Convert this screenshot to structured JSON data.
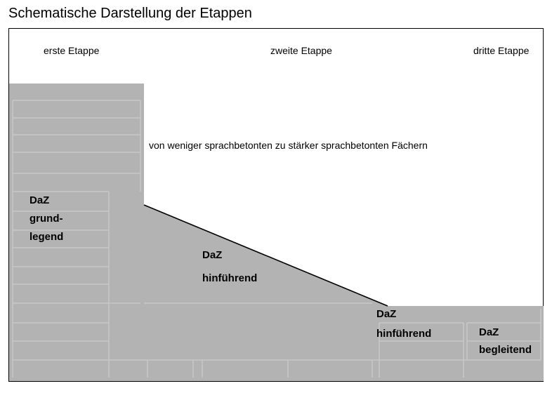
{
  "title": "Schematische Darstellung der Etappen",
  "stages": {
    "first": "erste Etappe",
    "second": "zweite Etappe",
    "third": "dritte Etappe"
  },
  "caption": "von weniger sprachbetonten zu stärker sprachbetonten Fächern",
  "blocks": {
    "grundlegend": {
      "line1": "DaZ",
      "line2": "grund-",
      "line3": "legend"
    },
    "hinfuehrend_1": {
      "line1": "DaZ",
      "line2": "hinführend"
    },
    "hinfuehrend_2": {
      "line1": "DaZ",
      "line2": "hinführend"
    },
    "begleitend": {
      "line1": "DaZ",
      "line2": "begleitend"
    }
  },
  "colors": {
    "fill": "#b3b3b3",
    "stripe": "#c4c4c4",
    "line": "#000000",
    "background": "#ffffff"
  }
}
